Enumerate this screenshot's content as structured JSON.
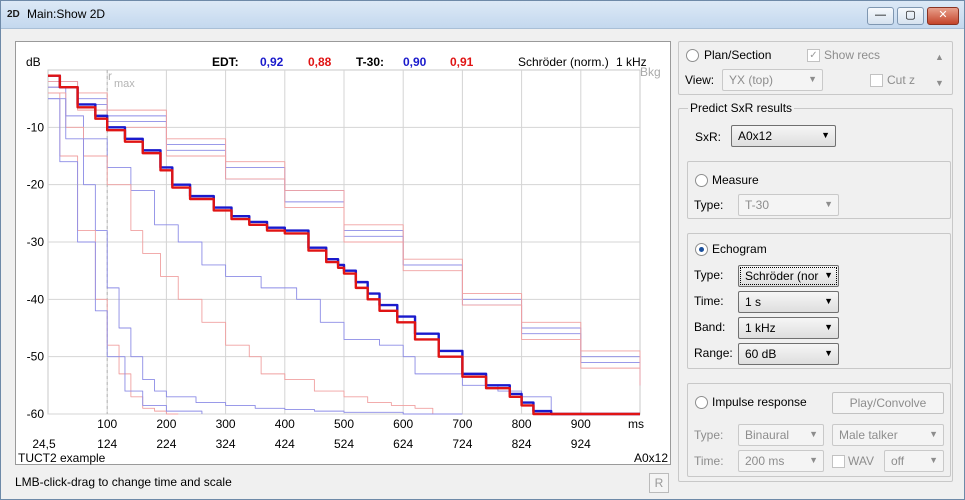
{
  "window": {
    "title": "Main:Show 2D",
    "icon": "2D",
    "controls": {
      "minimize": "—",
      "maximize": "▢",
      "close": "✕"
    }
  },
  "plot": {
    "y_unit": "dB",
    "x_unit": "ms",
    "header": {
      "edt_label": "EDT:",
      "edt_blue": "0,92",
      "edt_red": "0,88",
      "t30_label": "T-30:",
      "t30_blue": "0,90",
      "t30_red": "0,91",
      "mode": "Schröder (norm.)",
      "band": "1 kHz",
      "bkg": "Bkg"
    },
    "rmax_label": "r",
    "rmax_sub": "max",
    "footer_left": "TUCT2 example",
    "footer_right": "A0x12",
    "colors": {
      "blue": "#1a1acc",
      "red": "#e01414",
      "light_blue": "#8c8ce6",
      "light_red": "#f0a0a0",
      "grid": "#d4d4d4"
    }
  },
  "chart_data": {
    "type": "line",
    "xlabel": "ms",
    "ylabel": "dB",
    "xlim": [
      0,
      1000
    ],
    "ylim": [
      -60,
      0
    ],
    "x_ticks": [
      100,
      200,
      300,
      400,
      500,
      600,
      700,
      800,
      900
    ],
    "x_tick_labels": [
      "100",
      "200",
      "300",
      "400",
      "500",
      "600",
      "700",
      "800",
      "900"
    ],
    "y_ticks": [
      -10,
      -20,
      -30,
      -40,
      -50,
      -60
    ],
    "y_tick_labels": [
      "-10",
      "-20",
      "-30",
      "-40",
      "-50",
      "-60"
    ],
    "time_ticks": [
      "24,5",
      "124",
      "224",
      "324",
      "424",
      "524",
      "624",
      "724",
      "824",
      "924"
    ],
    "rmax_ms": 100,
    "series": [
      {
        "color": "#1a1acc",
        "weight": "bold",
        "x": [
          0,
          20,
          50,
          80,
          100,
          130,
          160,
          190,
          210,
          240,
          280,
          310,
          340,
          370,
          400,
          440,
          470,
          490,
          500,
          520,
          540,
          560,
          590,
          620,
          660,
          700,
          740,
          780,
          800,
          820,
          850,
          1000
        ],
        "y": [
          -1,
          -3,
          -6,
          -8,
          -10,
          -12,
          -14,
          -17,
          -20,
          -22,
          -24,
          -25.5,
          -26.5,
          -27.5,
          -28,
          -31,
          -33,
          -34,
          -35,
          -37,
          -39,
          -41,
          -43,
          -46,
          -49,
          -53,
          -55,
          -56.5,
          -58,
          -59.5,
          -60,
          -60
        ]
      },
      {
        "color": "#e01414",
        "weight": "bold",
        "x": [
          0,
          20,
          50,
          80,
          100,
          130,
          160,
          190,
          210,
          240,
          280,
          310,
          340,
          370,
          400,
          440,
          470,
          490,
          500,
          520,
          540,
          560,
          590,
          620,
          660,
          700,
          740,
          780,
          800,
          820,
          850,
          1000
        ],
        "y": [
          -1,
          -3,
          -6.5,
          -8.5,
          -10.5,
          -12.5,
          -14.5,
          -17.5,
          -20.5,
          -22.5,
          -24.5,
          -26,
          -27,
          -28,
          -28.5,
          -31.5,
          -33.5,
          -34.5,
          -35.5,
          -38,
          -40,
          -42,
          -44,
          -47,
          -50,
          -53.5,
          -55.5,
          -57,
          -58.5,
          -60,
          -60,
          -60
        ]
      },
      {
        "color": "#8c8ce6",
        "weight": "thin",
        "x": [
          0,
          50,
          100,
          200,
          300,
          400,
          500,
          600,
          700,
          800,
          900,
          1000
        ],
        "y": [
          -2,
          -5,
          -8,
          -13,
          -17,
          -21,
          -28,
          -34,
          -41,
          -46,
          -51,
          -55
        ]
      },
      {
        "color": "#8c8ce6",
        "weight": "thin",
        "x": [
          0,
          50,
          100,
          200,
          300,
          400,
          500,
          600,
          700,
          800,
          900,
          1000
        ],
        "y": [
          -3,
          -6,
          -9,
          -14,
          -19,
          -23,
          -29,
          -34,
          -40,
          -45,
          -50,
          -53
        ]
      },
      {
        "color": "#f0a0a0",
        "weight": "thin",
        "x": [
          0,
          50,
          100,
          200,
          300,
          400,
          500,
          600,
          700,
          800,
          900,
          1000
        ],
        "y": [
          -2,
          -4,
          -7,
          -12,
          -16,
          -21,
          -27,
          -33,
          -39,
          -44,
          -49,
          -52
        ]
      },
      {
        "color": "#f0a0a0",
        "weight": "thin",
        "x": [
          0,
          50,
          100,
          200,
          300,
          400,
          500,
          600,
          700,
          800,
          900,
          1000
        ],
        "y": [
          -3,
          -7,
          -10,
          -15,
          -19,
          -24,
          -30,
          -35,
          -41,
          -47,
          -52,
          -55
        ]
      },
      {
        "color": "#8c8ce6",
        "weight": "thin",
        "x": [
          0,
          30,
          60,
          100,
          140,
          180,
          220,
          260,
          300,
          360,
          420,
          460,
          500,
          560,
          600,
          620,
          700,
          760,
          800,
          850
        ],
        "y": [
          -3,
          -8,
          -12,
          -17,
          -21,
          -27,
          -30,
          -34,
          -36,
          -38,
          -40,
          -44,
          -47,
          -48,
          -50,
          -53,
          -55,
          -56,
          -57,
          -60
        ]
      },
      {
        "color": "#f0a0a0",
        "weight": "thin",
        "x": [
          0,
          30,
          60,
          100,
          140,
          160,
          190,
          220,
          260,
          300,
          340,
          360,
          400,
          450,
          500,
          540,
          580,
          620,
          650
        ],
        "y": [
          -4,
          -10,
          -15,
          -20,
          -28,
          -32,
          -36,
          -40,
          -44,
          -48,
          -50,
          -53,
          -54,
          -56,
          -57,
          -58,
          -58.5,
          -59,
          -60
        ]
      },
      {
        "color": "#8c8ce6",
        "weight": "thin",
        "x": [
          0,
          30,
          60,
          80,
          100,
          120,
          140,
          160,
          180,
          200,
          250,
          300,
          350,
          400,
          450,
          500,
          600,
          700
        ],
        "y": [
          -5,
          -12,
          -20,
          -28,
          -38,
          -45,
          -50,
          -54,
          -56,
          -57,
          -58,
          -58.5,
          -59,
          -59.2,
          -59.5,
          -59.7,
          -60,
          -60
        ]
      },
      {
        "color": "#f0a0a0",
        "weight": "thin",
        "x": [
          0,
          20,
          50,
          80,
          100,
          120,
          140,
          160,
          180,
          200,
          220
        ],
        "y": [
          -4,
          -15,
          -28,
          -40,
          -48,
          -53,
          -57,
          -59,
          -59.5,
          -60,
          -60
        ]
      },
      {
        "color": "#8c8ce6",
        "weight": "thin",
        "x": [
          0,
          20,
          50,
          80,
          100,
          130,
          160,
          200,
          260
        ],
        "y": [
          -5,
          -16,
          -30,
          -42,
          -50,
          -56,
          -58.5,
          -59.5,
          -60
        ]
      }
    ]
  },
  "status": {
    "hint": "LMB-click-drag to change time and scale",
    "r_button": "R"
  },
  "panel": {
    "plan": {
      "label": "Plan/Section",
      "show_recs": "Show recs",
      "view_label": "View:",
      "view_value": "YX (top)",
      "cut_z": "Cut z"
    },
    "predict": {
      "title": "Predict SxR results",
      "sxr_label": "SxR:",
      "sxr_value": "A0x12",
      "measure": {
        "label": "Measure",
        "type_label": "Type:",
        "type_value": "T-30"
      },
      "echogram": {
        "label": "Echogram",
        "type_label": "Type:",
        "type_value": "Schröder (nor",
        "time_label": "Time:",
        "time_value": "1 s",
        "band_label": "Band:",
        "band_value": "1 kHz",
        "range_label": "Range:",
        "range_value": "60 dB"
      },
      "impulse": {
        "label": "Impulse response",
        "play_button": "Play/Convolve",
        "type_label": "Type:",
        "type_value": "Binaural",
        "talker_value": "Male talker",
        "time_label": "Time:",
        "time_value": "200 ms",
        "wav_label": "WAV",
        "wav_value": "off"
      }
    }
  }
}
